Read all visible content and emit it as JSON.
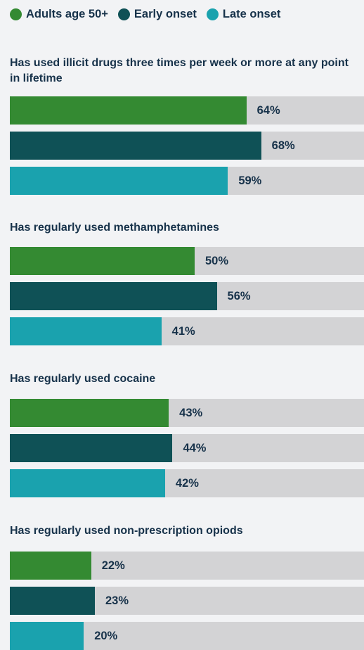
{
  "colors": {
    "adults": "#348a32",
    "early": "#0f5156",
    "late": "#1aa2ae"
  },
  "legend": [
    {
      "label": "Adults age 50+",
      "color_key": "adults"
    },
    {
      "label": "Early onset",
      "color_key": "early"
    },
    {
      "label": "Late onset",
      "color_key": "late"
    }
  ],
  "chart_data": {
    "type": "bar",
    "orientation": "horizontal",
    "xlim": [
      0,
      100
    ],
    "series_names": [
      "Adults age 50+",
      "Early onset",
      "Late onset"
    ],
    "groups": [
      {
        "title": "Has used illicit drugs three times per week or more at any point in lifetime",
        "values": [
          64,
          68,
          59
        ],
        "labels": [
          "64%",
          "68%",
          "59%"
        ]
      },
      {
        "title": "Has regularly used methamphetamines",
        "values": [
          50,
          56,
          41
        ],
        "labels": [
          "50%",
          "56%",
          "41%"
        ]
      },
      {
        "title": "Has regularly used cocaine",
        "values": [
          43,
          44,
          42
        ],
        "labels": [
          "43%",
          "44%",
          "42%"
        ]
      },
      {
        "title": "Has regularly used non-prescription opiods",
        "values": [
          22,
          23,
          20
        ],
        "labels": [
          "22%",
          "23%",
          "20%"
        ]
      }
    ]
  }
}
